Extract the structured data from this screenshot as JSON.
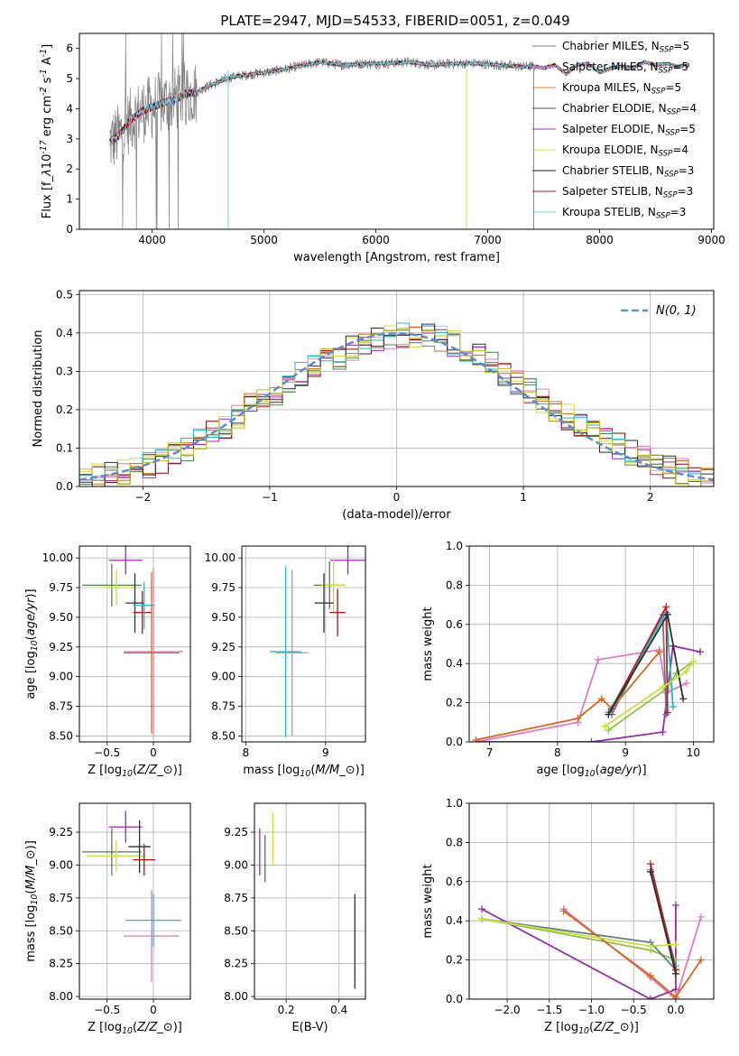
{
  "title": "PLATE=2947, MJD=54533, FIBERID=0051, z=0.049",
  "colors": {
    "series": [
      "#7f7f7f",
      "#e06be0",
      "#e07b20",
      "#4a4a4a",
      "#9b30c8",
      "#e0e040",
      "#222222",
      "#b01010",
      "#70d8e0"
    ],
    "age_mass_lines": [
      "#e377c2",
      "#9c27b0",
      "#8bc34a",
      "#607d8b",
      "#d4681c",
      "#17becf",
      "#c41e1e",
      "#2e2e2e",
      "#cddc39"
    ],
    "gaussian": "#5b8bd4",
    "grid": "#b0b0b0"
  },
  "legend_spectrum": [
    "Chabrier MILES, N$_{SSP}$=5",
    "Salpeter MILES, N$_{SSP}$=5",
    "Kroupa MILES, N$_{SSP}$=5",
    "Chabrier ELODIE, N$_{SSP}$=4",
    "Salpeter ELODIE, N$_{SSP}$=5",
    "Kroupa ELODIE, N$_{SSP}$=4",
    "Chabrier STELIB, N$_{SSP}$=3",
    "Salpeter STELIB, N$_{SSP}$=3",
    "Kroupa STELIB, N$_{SSP}$=3"
  ],
  "chart_data": [
    {
      "id": "spectrum",
      "type": "line",
      "xlabel": "wavelength [Angstrom, rest frame]",
      "ylabel": "Flux [f$_\\lambda$10$^{-17}$ erg cm$^{-2}$ s$^{-1}$ A$^{-1}$]",
      "xlim": [
        3350,
        9020
      ],
      "ylim": [
        0,
        6.5
      ],
      "xticks": [
        4000,
        5000,
        6000,
        7000,
        8000,
        9000
      ],
      "yticks": [
        0,
        1,
        2,
        3,
        4,
        5,
        6
      ],
      "grid": false,
      "legend": "upper right",
      "continuum": {
        "x": [
          3620,
          3700,
          3800,
          3900,
          4000,
          4100,
          4200,
          4300,
          4400,
          4500,
          4700,
          4900,
          5100,
          5300,
          5500,
          5700,
          5900,
          6100,
          6300,
          6500,
          6700,
          6900,
          7100,
          7300,
          7420,
          7500,
          7600,
          7700,
          7800,
          7900,
          8000,
          8100,
          8200,
          8300,
          8400,
          8500,
          8600,
          8700,
          8800
        ],
        "y": [
          2.9,
          3.1,
          3.6,
          3.9,
          4.05,
          4.2,
          4.3,
          4.5,
          4.55,
          4.75,
          5.05,
          5.15,
          5.25,
          5.4,
          5.55,
          5.45,
          5.5,
          5.5,
          5.55,
          5.45,
          5.5,
          5.5,
          5.45,
          5.4,
          5.4,
          5.35,
          5.45,
          5.15,
          5.45,
          5.5,
          5.2,
          5.35,
          5.4,
          5.35,
          5.55,
          5.45,
          5.5,
          5.4,
          5.45
        ]
      }
    },
    {
      "id": "residuals",
      "type": "bar",
      "xlabel": "(data-model)/error",
      "ylabel": "Normed distribution",
      "xlim": [
        -2.5,
        2.5
      ],
      "ylim": [
        0,
        0.51
      ],
      "xticks": [
        -2,
        -1,
        0,
        1,
        2
      ],
      "yticks": [
        0.0,
        0.1,
        0.2,
        0.3,
        0.4,
        0.5
      ],
      "grid": true,
      "legend": "upper right",
      "legend_label": "$\\mathcal{N}(0,1)$",
      "bin_edges": [
        -2.5,
        -2.4,
        -2.3,
        -2.2,
        -2.1,
        -2.0,
        -1.9,
        -1.8,
        -1.7,
        -1.6,
        -1.5,
        -1.4,
        -1.3,
        -1.2,
        -1.1,
        -1.0,
        -0.9,
        -0.8,
        -0.7,
        -0.6,
        -0.5,
        -0.4,
        -0.3,
        -0.2,
        -0.1,
        0.0,
        0.1,
        0.2,
        0.3,
        0.4,
        0.5,
        0.6,
        0.7,
        0.8,
        0.9,
        1.0,
        1.1,
        1.2,
        1.3,
        1.4,
        1.5,
        1.6,
        1.7,
        1.8,
        1.9,
        2.0,
        2.1,
        2.2,
        2.3,
        2.4,
        2.5
      ],
      "mean_density": [
        0.019,
        0.024,
        0.035,
        0.037,
        0.045,
        0.055,
        0.067,
        0.082,
        0.098,
        0.118,
        0.139,
        0.158,
        0.185,
        0.21,
        0.22,
        0.243,
        0.268,
        0.293,
        0.315,
        0.34,
        0.34,
        0.358,
        0.373,
        0.385,
        0.385,
        0.395,
        0.395,
        0.39,
        0.385,
        0.372,
        0.355,
        0.345,
        0.316,
        0.298,
        0.275,
        0.25,
        0.22,
        0.2,
        0.18,
        0.155,
        0.14,
        0.12,
        0.105,
        0.085,
        0.07,
        0.058,
        0.046,
        0.038,
        0.028,
        0.022
      ],
      "gaussian": {
        "mean": 0,
        "sigma": 1
      }
    },
    {
      "id": "age-vs-Z",
      "type": "scatter",
      "xlabel": "Z [log$_{10}$($Z/Z_\\odot$)]",
      "ylabel": "age  [log$_{10}$($age/yr$)]",
      "xlim": [
        -0.8,
        0.4
      ],
      "ylim": [
        8.45,
        10.1
      ],
      "xticks": [
        -0.5,
        0.0
      ],
      "yticks": [
        8.5,
        8.75,
        9.0,
        9.25,
        9.5,
        9.75,
        10.0
      ],
      "grid": true,
      "points": [
        {
          "x": -0.3,
          "y": 9.98,
          "xerr": 0.18,
          "yerr": 0.12
        },
        {
          "x": -0.45,
          "y": 9.77,
          "xerr": 0.32,
          "yerr": 0.18
        },
        {
          "x": -0.4,
          "y": 9.75,
          "xerr": 0.2,
          "yerr": 0.15
        },
        {
          "x": -0.2,
          "y": 9.62,
          "xerr": 0.1,
          "yerr": 0.25
        },
        {
          "x": -0.12,
          "y": 9.54,
          "xerr": 0.1,
          "yerr": 0.18
        },
        {
          "x": -0.1,
          "y": 9.6,
          "xerr": 0.12,
          "yerr": 0.2
        },
        {
          "x": 0.0,
          "y": 9.21,
          "xerr": 0.32,
          "yerr": 0.7
        },
        {
          "x": -0.02,
          "y": 9.2,
          "xerr": 0.3,
          "yerr": 0.68
        }
      ]
    },
    {
      "id": "age-vs-mass",
      "type": "scatter",
      "xlabel": "mass [log$_{10}$($M/M_\\odot$)]",
      "ylabel": "",
      "xlim": [
        7.95,
        9.5
      ],
      "ylim": [
        8.45,
        10.1
      ],
      "xticks": [
        8,
        9
      ],
      "yticks": [
        8.5,
        8.75,
        9.0,
        9.25,
        9.5,
        9.75,
        10.0
      ],
      "grid": true,
      "points": [
        {
          "x": 9.28,
          "y": 9.98,
          "xerr": 0.22,
          "yerr": 0.12
        },
        {
          "x": 9.05,
          "y": 9.77,
          "xerr": 0.2,
          "yerr": 0.2
        },
        {
          "x": 9.1,
          "y": 9.77,
          "xerr": 0.15,
          "yerr": 0.22
        },
        {
          "x": 8.98,
          "y": 9.62,
          "xerr": 0.12,
          "yerr": 0.25
        },
        {
          "x": 9.15,
          "y": 9.54,
          "xerr": 0.1,
          "yerr": 0.2
        },
        {
          "x": 8.5,
          "y": 9.21,
          "xerr": 0.2,
          "yerr": 0.72
        },
        {
          "x": 8.58,
          "y": 9.2,
          "xerr": 0.2,
          "yerr": 0.7
        }
      ]
    },
    {
      "id": "mass-weight-vs-age",
      "type": "line",
      "xlabel": "age  [log$_{10}$($age/yr$)]",
      "ylabel": "mass weight",
      "xlim": [
        6.7,
        10.3
      ],
      "ylim": [
        0,
        1.0
      ],
      "xticks": [
        7,
        8,
        9,
        10
      ],
      "yticks": [
        0.0,
        0.2,
        0.4,
        0.6,
        0.8,
        1.0
      ],
      "grid": true,
      "series": [
        {
          "x": [
            6.8,
            8.3,
            8.6,
            9.5,
            9.6,
            9.9
          ],
          "y": [
            0.0,
            0.1,
            0.42,
            0.47,
            0.25,
            0.3
          ]
        },
        {
          "x": [
            6.8,
            8.5,
            9.55,
            9.7,
            10.1
          ],
          "y": [
            0.0,
            0.0,
            0.05,
            0.49,
            0.46
          ]
        },
        {
          "x": [
            8.75,
            9.6,
            9.75,
            10.0
          ],
          "y": [
            0.06,
            0.27,
            0.35,
            0.41
          ]
        },
        {
          "x": [
            8.8,
            9.55,
            9.6
          ],
          "y": [
            0.14,
            0.65,
            0.14
          ]
        },
        {
          "x": [
            6.8,
            8.3,
            8.65,
            8.8,
            9.5
          ],
          "y": [
            0.01,
            0.12,
            0.22,
            0.17,
            0.46
          ]
        },
        {
          "x": [
            8.75,
            9.6,
            9.7
          ],
          "y": [
            0.15,
            0.66,
            0.18
          ]
        },
        {
          "x": [
            8.8,
            9.6,
            9.62
          ],
          "y": [
            0.17,
            0.69,
            0.15
          ]
        },
        {
          "x": [
            8.75,
            9.62,
            9.85
          ],
          "y": [
            0.14,
            0.65,
            0.22
          ]
        },
        {
          "x": [
            8.7,
            9.55,
            9.9,
            10.0
          ],
          "y": [
            0.08,
            0.28,
            0.36,
            0.41
          ]
        }
      ]
    },
    {
      "id": "mass-vs-Z",
      "type": "scatter",
      "xlabel": "Z [log$_{10}$($Z/Z_\\odot$)]",
      "ylabel": "mass [log$_{10}$($M/M_\\odot$)]",
      "xlim": [
        -0.8,
        0.4
      ],
      "ylim": [
        7.98,
        9.47
      ],
      "xticks": [
        -0.5,
        0.0
      ],
      "yticks": [
        8.0,
        8.25,
        8.5,
        8.75,
        9.0,
        9.25
      ],
      "grid": true,
      "points": [
        {
          "x": -0.3,
          "y": 9.29,
          "xerr": 0.18,
          "yerr": 0.12
        },
        {
          "x": -0.45,
          "y": 9.1,
          "xerr": 0.32,
          "yerr": 0.18
        },
        {
          "x": -0.4,
          "y": 9.07,
          "xerr": 0.32,
          "yerr": 0.12
        },
        {
          "x": -0.15,
          "y": 9.14,
          "xerr": 0.12,
          "yerr": 0.2
        },
        {
          "x": -0.1,
          "y": 9.04,
          "xerr": 0.12,
          "yerr": 0.12
        },
        {
          "x": 0.0,
          "y": 8.58,
          "xerr": 0.3,
          "yerr": 0.2
        },
        {
          "x": -0.02,
          "y": 8.46,
          "xerr": 0.3,
          "yerr": 0.35
        }
      ]
    },
    {
      "id": "mass-vs-EBV",
      "type": "scatter",
      "xlabel": "E(B-V)",
      "ylabel": "",
      "xlim": [
        0.08,
        0.5
      ],
      "ylim": [
        7.98,
        9.47
      ],
      "xticks": [
        0.2,
        0.4
      ],
      "yticks": [
        8.0,
        8.25,
        8.5,
        8.75,
        9.0,
        9.25
      ],
      "grid": true,
      "points": [
        {
          "x": 0.1,
          "y": 9.1,
          "xerr": 0,
          "yerr": 0.18
        },
        {
          "x": 0.12,
          "y": 9.05,
          "xerr": 0,
          "yerr": 0.18
        },
        {
          "x": 0.15,
          "y": 9.2,
          "xerr": 0,
          "yerr": 0.2
        },
        {
          "x": 0.46,
          "y": 8.42,
          "xerr": 0,
          "yerr": 0.36
        }
      ]
    },
    {
      "id": "mass-weight-vs-Z",
      "type": "line",
      "xlabel": "Z [log$_{10}$($Z/Z_\\odot$)]",
      "ylabel": "mass weight",
      "xlim": [
        -2.45,
        0.45
      ],
      "ylim": [
        0,
        1.0
      ],
      "xticks": [
        -2.0,
        -1.5,
        -1.0,
        -0.5,
        0.0
      ],
      "yticks": [
        0.0,
        0.2,
        0.4,
        0.6,
        0.8,
        1.0
      ],
      "grid": true,
      "series": [
        {
          "x": [
            -1.33,
            -0.3,
            0.0,
            0.3
          ],
          "y": [
            0.46,
            0.11,
            0.0,
            0.42
          ]
        },
        {
          "x": [
            -2.3,
            -0.3,
            0.0,
            0.0
          ],
          "y": [
            0.46,
            0.0,
            0.05,
            0.48
          ]
        },
        {
          "x": [
            -2.3,
            -0.3,
            0.0
          ],
          "y": [
            0.41,
            0.25,
            0.2
          ]
        },
        {
          "x": [
            -2.3,
            -0.3,
            0.0
          ],
          "y": [
            0.41,
            0.29,
            0.15
          ]
        },
        {
          "x": [
            -1.33,
            -0.3,
            0.0,
            0.3
          ],
          "y": [
            0.45,
            0.12,
            0.01,
            0.2
          ]
        },
        {
          "x": [
            -0.3,
            0.0
          ],
          "y": [
            0.66,
            0.17
          ]
        },
        {
          "x": [
            -0.3,
            0.0
          ],
          "y": [
            0.69,
            0.15
          ]
        },
        {
          "x": [
            -0.3,
            0.0
          ],
          "y": [
            0.65,
            0.13
          ]
        },
        {
          "x": [
            -2.3,
            -0.3,
            0.0
          ],
          "y": [
            0.41,
            0.27,
            0.28
          ]
        }
      ]
    }
  ]
}
